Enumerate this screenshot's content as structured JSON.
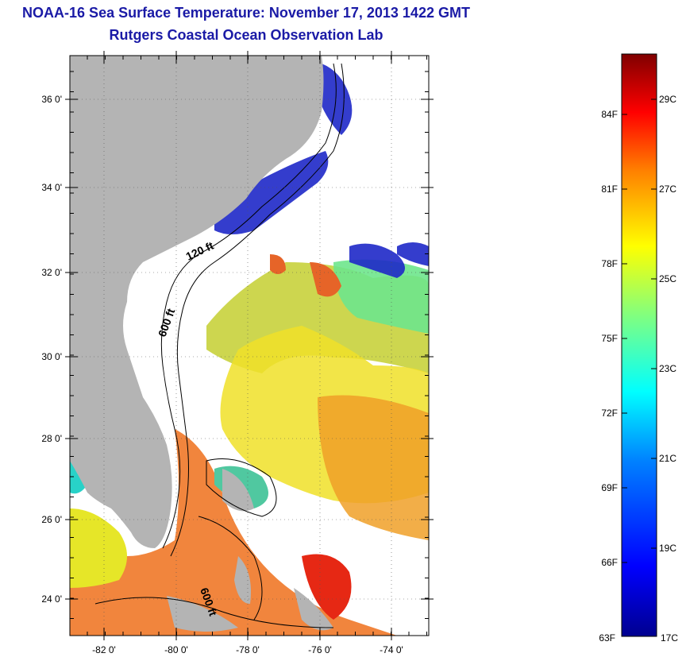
{
  "title": "NOAA-16 Sea Surface Temperature:  November 17, 2013 1422 GMT",
  "subtitle": "Rutgers Coastal Ocean Observation Lab",
  "map": {
    "lat_labels": [
      "36 0'",
      "34 0'",
      "32 0'",
      "30 0'",
      "28 0'",
      "26 0'",
      "24 0'"
    ],
    "lon_labels": [
      "-82 0'",
      "-80 0'",
      "-78 0'",
      "-76 0'",
      "-74 0'"
    ],
    "contour_labels": [
      "120 ft",
      "600 ft",
      "600 ft"
    ],
    "land_color": "#b4b4b4",
    "no_data_color": "#ffffff"
  },
  "colorbar": {
    "min_f": "63F",
    "min_c": "17C",
    "fahrenheit_labels": [
      "84F",
      "81F",
      "78F",
      "75F",
      "72F",
      "69F",
      "66F"
    ],
    "celsius_labels": [
      "29C",
      "27C",
      "25C",
      "23C",
      "21C",
      "19C"
    ],
    "colors": [
      "#00008f",
      "#0000ff",
      "#0080ff",
      "#00ffff",
      "#80ff80",
      "#ffff00",
      "#ff8000",
      "#ff0000",
      "#800000"
    ]
  }
}
